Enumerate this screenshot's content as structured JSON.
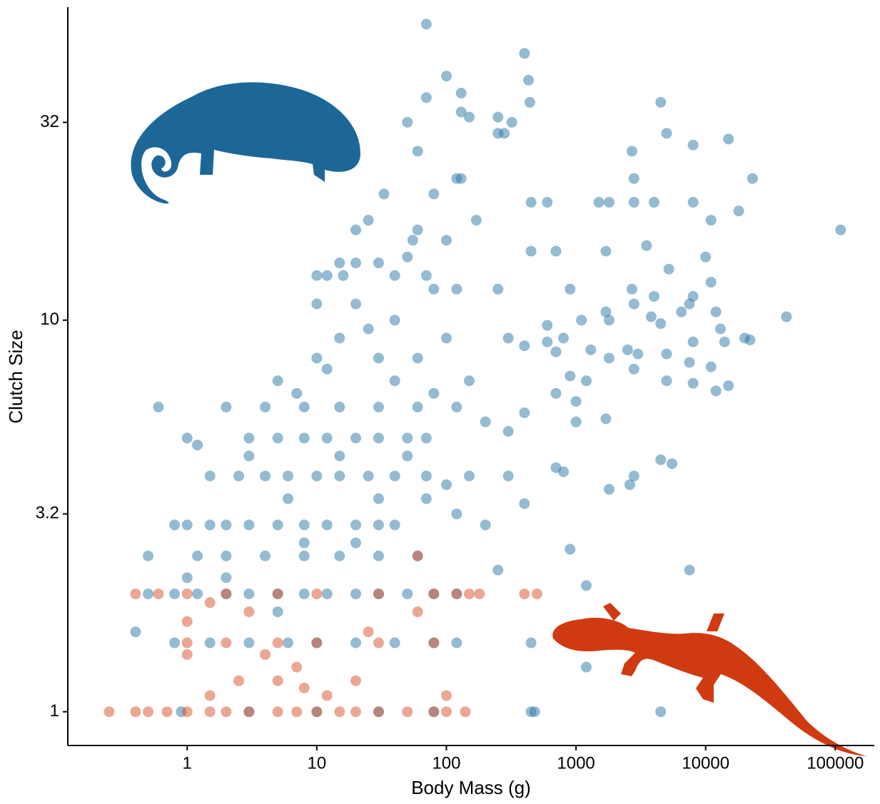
{
  "chart_data": {
    "type": "scatter",
    "xlabel": "Body Mass (g)",
    "ylabel": "Clutch Size",
    "xlog": true,
    "ylog": true,
    "grid": false,
    "xlim": [
      0.12,
      200000
    ],
    "ylim": [
      0.82,
      63
    ],
    "xticks": [
      1,
      10,
      100,
      1000,
      10000,
      100000
    ],
    "yticks": [
      1,
      3.2,
      10,
      32
    ],
    "series": [
      {
        "color": "#2a78a6",
        "x": [
          70,
          400,
          100,
          430,
          70,
          130,
          440,
          130,
          150,
          50,
          250,
          320,
          250,
          280,
          4500,
          5000,
          15000,
          8000,
          60,
          2700,
          2800,
          120,
          130,
          80,
          33,
          450,
          600,
          1500,
          1800,
          2800,
          4000,
          8000,
          23000,
          18000,
          25,
          170,
          60,
          11000,
          110000,
          20,
          55,
          100,
          450,
          700,
          1700,
          3500,
          10000,
          5200,
          15,
          20,
          30,
          50,
          70,
          10,
          12,
          16,
          40,
          80,
          120,
          250,
          900,
          2700,
          11000,
          4000,
          2800,
          7500,
          8000,
          6500,
          12000,
          42000,
          1700,
          3800,
          600,
          1100,
          1800,
          4500,
          13000,
          600,
          800,
          14000,
          20000,
          22000,
          8000,
          2500,
          3000,
          300,
          400,
          700,
          1300,
          5000,
          7500,
          11000,
          1800,
          2800,
          900,
          1200,
          5000,
          15000,
          12000,
          700,
          8000,
          1000,
          400,
          1000,
          1700,
          300,
          4500,
          5500,
          700,
          800,
          300,
          1800,
          2600,
          2800,
          120,
          200,
          400,
          900,
          7500,
          250,
          1200,
          450,
          1200,
          4500,
          450,
          480,
          1,
          1.5,
          2,
          3,
          5,
          8,
          12,
          20,
          30,
          40,
          0.5,
          0.8,
          1.2,
          2,
          3,
          5,
          8,
          12,
          20,
          30,
          50,
          80,
          120,
          0.8,
          1.5,
          3,
          6,
          10,
          20,
          40,
          80,
          120,
          1.5,
          2.5,
          4,
          6,
          10,
          15,
          25,
          40,
          70,
          150,
          3,
          5,
          8,
          12,
          20,
          30,
          50,
          70,
          1.2,
          2,
          4,
          8,
          15,
          30,
          60,
          2,
          4,
          8,
          15,
          30,
          60,
          120,
          10,
          15,
          25,
          40,
          10,
          20,
          30,
          5,
          7,
          12,
          40,
          60,
          80,
          100,
          150,
          200,
          3,
          6,
          15,
          30,
          50,
          70,
          100,
          0.6,
          0.4,
          0.5,
          1,
          1.2,
          0.8,
          1,
          2,
          5,
          8,
          20,
          0.9,
          3,
          10,
          30,
          80
        ],
        "values": [
          57,
          48,
          42,
          41,
          37,
          38,
          36,
          34,
          33,
          32,
          33,
          32,
          30,
          30,
          36,
          30,
          29,
          28,
          27,
          27,
          23,
          23,
          23,
          21,
          21,
          20,
          20,
          20,
          20,
          20,
          20,
          20,
          23,
          19,
          18,
          18,
          17,
          18,
          17,
          17,
          16,
          16,
          15,
          15,
          15,
          15.5,
          14.5,
          13.5,
          14,
          14,
          14,
          14.5,
          13,
          13,
          13,
          13,
          13,
          12,
          12,
          12,
          12,
          12,
          12.5,
          11.5,
          11,
          11,
          11.5,
          10.5,
          10.5,
          10.2,
          10.5,
          10.2,
          9.7,
          10,
          10,
          9.8,
          9.5,
          8.8,
          9,
          8.8,
          9,
          8.9,
          8.8,
          8.4,
          8.2,
          9,
          8.6,
          8.3,
          8.4,
          8.2,
          7.8,
          7.6,
          8,
          7.5,
          7.2,
          7,
          7,
          6.8,
          6.6,
          6.5,
          6.9,
          6.2,
          5.8,
          5.5,
          5.6,
          5.2,
          4.4,
          4.3,
          4.2,
          4.1,
          4,
          3.7,
          3.8,
          4,
          3.2,
          3,
          3.4,
          2.6,
          2.3,
          2.3,
          2.1,
          1.5,
          1.3,
          1,
          1,
          1,
          3,
          3,
          3,
          3,
          3,
          3,
          3,
          3,
          3,
          3,
          2,
          2,
          2,
          2,
          2,
          2,
          2,
          2,
          2,
          2,
          2,
          2,
          2,
          1.5,
          1.5,
          1.5,
          1.5,
          1.5,
          1.5,
          1.5,
          1.5,
          1.5,
          4,
          4,
          4,
          4,
          4,
          4,
          4,
          4,
          4,
          4,
          5,
          5,
          5,
          5,
          5,
          5,
          5,
          5,
          2.5,
          2.5,
          2.5,
          2.5,
          2.5,
          2.5,
          2.5,
          6,
          6,
          6,
          6,
          6,
          6,
          6,
          8,
          9,
          9.5,
          10,
          11,
          11,
          8,
          7,
          6.5,
          7.5,
          7,
          8,
          6.5,
          9,
          7,
          5.5,
          4.5,
          3.5,
          4.5,
          3.5,
          4.5,
          3.5,
          3.8,
          6,
          1.6,
          2.5,
          5,
          4.8,
          3,
          2.2,
          2.2,
          1.8,
          2.7,
          2.7,
          1,
          1,
          1,
          1,
          1
        ]
      },
      {
        "color": "#d9502a",
        "x": [
          0.4,
          0.6,
          1,
          2,
          5,
          10,
          30,
          80,
          120,
          150,
          180,
          400,
          500,
          1,
          2,
          5,
          10,
          30,
          80,
          0.25,
          0.4,
          0.5,
          0.7,
          1,
          1.5,
          2,
          3,
          5,
          7,
          10,
          15,
          20,
          30,
          50,
          80,
          100,
          140,
          1,
          1.5,
          3,
          2.5,
          1.5,
          5,
          7,
          8,
          12,
          20,
          60,
          100,
          60,
          1,
          4,
          25
        ],
        "values": [
          2,
          2,
          2,
          2,
          2,
          2,
          2,
          2,
          2,
          2,
          2,
          2,
          2,
          1.5,
          1.5,
          1.5,
          1.5,
          1.5,
          1.5,
          1,
          1,
          1,
          1,
          1,
          1,
          1,
          1,
          1,
          1,
          1,
          1,
          1,
          1,
          1,
          1,
          1,
          1,
          1.7,
          1.9,
          1.8,
          1.2,
          1.1,
          1.2,
          1.3,
          1.15,
          1.1,
          1.2,
          1.8,
          1.1,
          2.5,
          1.4,
          1.4,
          1.6
        ]
      }
    ]
  }
}
